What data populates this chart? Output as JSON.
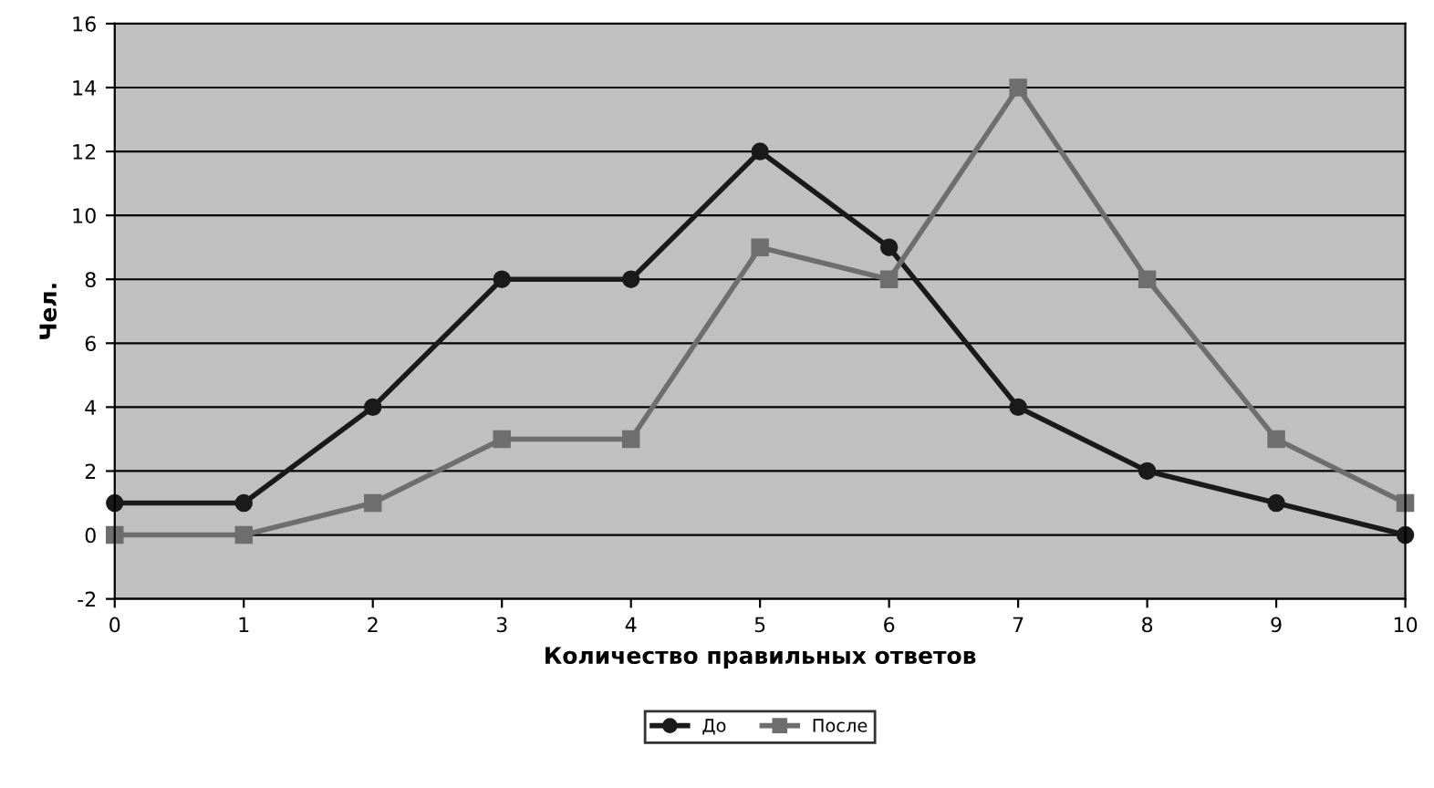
{
  "chart_data": {
    "type": "line",
    "xlabel": "Количество правильных ответов",
    "ylabel": "Чел.",
    "x": [
      0,
      1,
      2,
      3,
      4,
      5,
      6,
      7,
      8,
      9,
      10
    ],
    "series": [
      {
        "name": "До",
        "color": "#1a1a1a",
        "marker": "circle",
        "values": [
          1,
          1,
          4,
          8,
          8,
          12,
          9,
          4,
          2,
          1,
          0
        ]
      },
      {
        "name": "После",
        "color": "#6e6e6e",
        "marker": "square",
        "values": [
          0,
          0,
          1,
          3,
          3,
          9,
          8,
          14,
          8,
          3,
          1
        ]
      }
    ],
    "xlim": [
      0,
      10
    ],
    "xticks": [
      0,
      1,
      2,
      3,
      4,
      5,
      6,
      7,
      8,
      9,
      10
    ],
    "ylim": [
      -2,
      16
    ],
    "yticks": [
      -2,
      0,
      2,
      4,
      6,
      8,
      10,
      12,
      14,
      16
    ],
    "grid": "y",
    "legend": "bottom",
    "line_style": "solid"
  }
}
